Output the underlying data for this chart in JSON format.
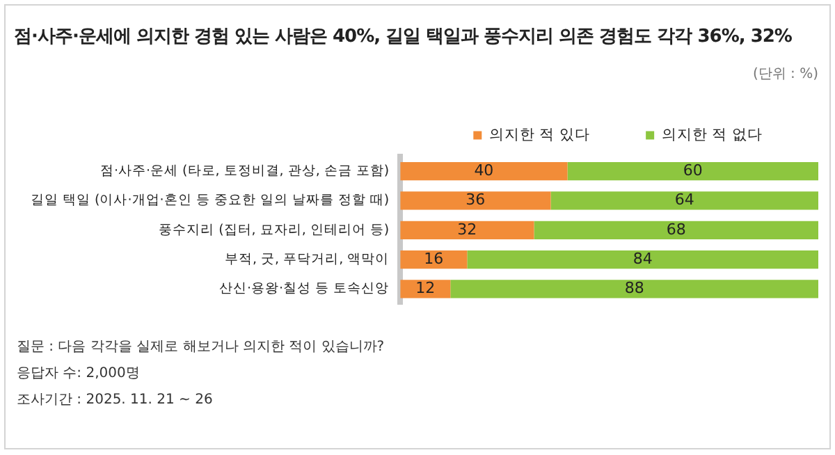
{
  "chart_data": {
    "type": "bar",
    "orientation": "horizontal",
    "stacked": true,
    "title": "점·사주·운세에 의지한 경험 있는 사람은 40%, 길일 택일과 풍수지리 의존 경험도 각각 36%, 32%",
    "categories": [
      "점·사주·운세 (타로, 토정비결, 관상, 손금 포함)",
      "길일 택일 (이사·개업·혼인 등 중요한 일의 날짜를 정할 때)",
      "풍수지리 (집터, 묘자리, 인테리어 등)",
      "부적, 굿, 푸닥거리, 액막이",
      "산신·용왕·칠성 등 토속신앙"
    ],
    "series": [
      {
        "name": "의지한 적 있다",
        "color": "#f28c38",
        "values": [
          40,
          36,
          32,
          16,
          12
        ]
      },
      {
        "name": "의지한 적 없다",
        "color": "#8dc63f",
        "values": [
          60,
          64,
          68,
          84,
          88
        ]
      }
    ],
    "xlim": [
      0,
      100
    ],
    "tick_labels": "y",
    "grid": false,
    "legend": "top right",
    "data_labels": true,
    "annotations": [
      "(단위 : %)",
      "질문 : 다음 각각을 실제로 해보거나 의지한 적이 있습니까?",
      "응답자 수: 2,000명",
      "조사기간 : 2025. 11. 21 ~ 26"
    ]
  }
}
